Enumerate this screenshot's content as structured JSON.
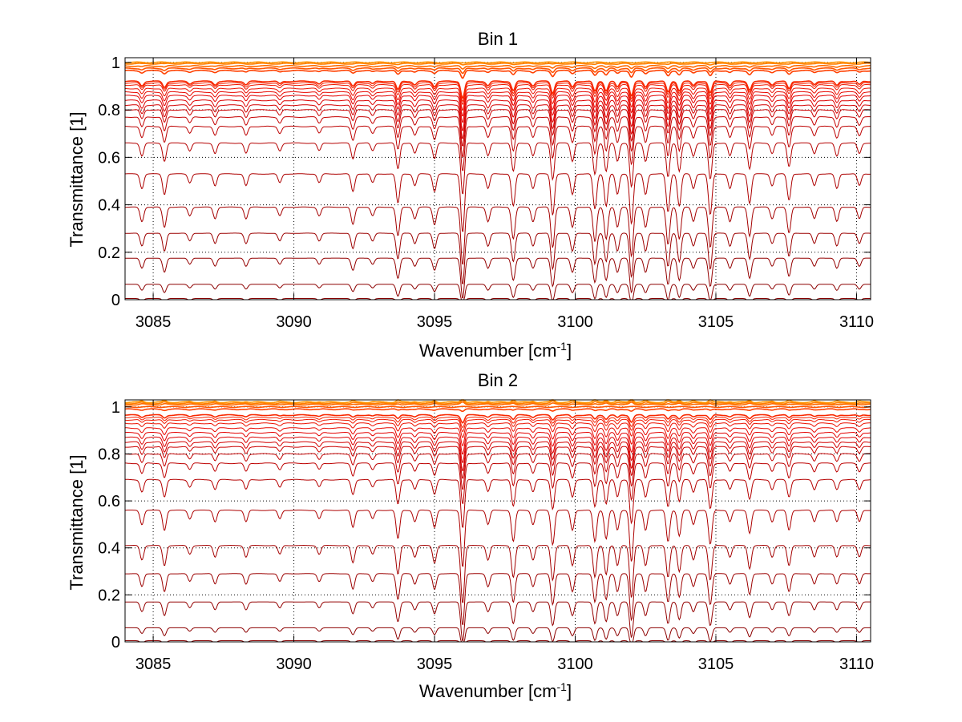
{
  "chart_data": [
    {
      "type": "line",
      "title": "Bin 1",
      "xlabel": "Wavenumber [cm",
      "xlabel_sup": "-1",
      "xlabel_close": "]",
      "ylabel": "Transmittance [1]",
      "xlim": [
        3084,
        3110.5
      ],
      "ylim": [
        0,
        1.02
      ],
      "xticks": [
        3085,
        3090,
        3095,
        3100,
        3105,
        3110
      ],
      "yticks": [
        0,
        0.2,
        0.4,
        0.6,
        0.8,
        1
      ],
      "ytick_labels": [
        "0",
        "0.2",
        "0.4",
        "0.6",
        "0.8",
        "1"
      ],
      "grid": true,
      "absorption_lines": [
        {
          "x": 3084.6,
          "depth": 0.25
        },
        {
          "x": 3085.4,
          "depth": 0.35
        },
        {
          "x": 3086.3,
          "depth": 0.15
        },
        {
          "x": 3087.2,
          "depth": 0.2
        },
        {
          "x": 3088.3,
          "depth": 0.2
        },
        {
          "x": 3089.5,
          "depth": 0.15
        },
        {
          "x": 3090.9,
          "depth": 0.15
        },
        {
          "x": 3092.1,
          "depth": 0.3
        },
        {
          "x": 3092.8,
          "depth": 0.15
        },
        {
          "x": 3093.7,
          "depth": 0.5
        },
        {
          "x": 3094.3,
          "depth": 0.2
        },
        {
          "x": 3095.0,
          "depth": 0.3
        },
        {
          "x": 3096.0,
          "depth": 1.0
        },
        {
          "x": 3096.9,
          "depth": 0.25
        },
        {
          "x": 3097.8,
          "depth": 0.55
        },
        {
          "x": 3098.5,
          "depth": 0.25
        },
        {
          "x": 3099.2,
          "depth": 0.7
        },
        {
          "x": 3099.9,
          "depth": 0.35
        },
        {
          "x": 3100.7,
          "depth": 0.6
        },
        {
          "x": 3101.1,
          "depth": 0.55
        },
        {
          "x": 3101.5,
          "depth": 0.35
        },
        {
          "x": 3102.0,
          "depth": 0.85
        },
        {
          "x": 3102.5,
          "depth": 0.35
        },
        {
          "x": 3103.3,
          "depth": 0.65
        },
        {
          "x": 3103.7,
          "depth": 0.55
        },
        {
          "x": 3104.2,
          "depth": 0.25
        },
        {
          "x": 3104.8,
          "depth": 0.7
        },
        {
          "x": 3105.5,
          "depth": 0.25
        },
        {
          "x": 3106.2,
          "depth": 0.5
        },
        {
          "x": 3107.0,
          "depth": 0.2
        },
        {
          "x": 3107.6,
          "depth": 0.45
        },
        {
          "x": 3108.5,
          "depth": 0.2
        },
        {
          "x": 3109.3,
          "depth": 0.25
        },
        {
          "x": 3110.1,
          "depth": 0.2
        }
      ],
      "baselines": [
        0.0,
        0.005,
        0.065,
        0.175,
        0.28,
        0.39,
        0.53,
        0.66,
        0.73,
        0.77,
        0.8,
        0.82,
        0.84,
        0.86,
        0.875,
        0.89,
        0.905,
        0.913,
        0.92,
        0.965,
        0.975,
        0.985,
        0.995,
        1.0
      ],
      "colors": [
        "#7f0000",
        "#840000",
        "#8c0000",
        "#940000",
        "#9c0000",
        "#a40000",
        "#ad0000",
        "#b50000",
        "#bd0000",
        "#c50000",
        "#cc0000",
        "#d40000",
        "#dc0000",
        "#e40000",
        "#e80800",
        "#ec1000",
        "#f01800",
        "#f42000",
        "#f82800",
        "#ff4000",
        "#ff5500",
        "#ff6a00",
        "#ff7f00",
        "#ff9400"
      ]
    },
    {
      "type": "line",
      "title": "Bin 2",
      "xlabel": "Wavenumber [cm",
      "xlabel_sup": "-1",
      "xlabel_close": "]",
      "ylabel": "Transmittance [1]",
      "xlim": [
        3084,
        3110.5
      ],
      "ylim": [
        0,
        1.03
      ],
      "xticks": [
        3085,
        3090,
        3095,
        3100,
        3105,
        3110
      ],
      "yticks": [
        0,
        0.2,
        0.4,
        0.6,
        0.8,
        1
      ],
      "ytick_labels": [
        "0",
        "0.2",
        "0.4",
        "0.6",
        "0.8",
        "1"
      ],
      "grid": true,
      "absorption_lines": [
        {
          "x": 3084.6,
          "depth": 0.25
        },
        {
          "x": 3085.4,
          "depth": 0.35
        },
        {
          "x": 3086.3,
          "depth": 0.15
        },
        {
          "x": 3087.2,
          "depth": 0.2
        },
        {
          "x": 3088.3,
          "depth": 0.2
        },
        {
          "x": 3089.5,
          "depth": 0.15
        },
        {
          "x": 3090.9,
          "depth": 0.15
        },
        {
          "x": 3092.1,
          "depth": 0.3
        },
        {
          "x": 3092.8,
          "depth": 0.15
        },
        {
          "x": 3093.7,
          "depth": 0.5
        },
        {
          "x": 3094.3,
          "depth": 0.2
        },
        {
          "x": 3095.0,
          "depth": 0.3
        },
        {
          "x": 3096.0,
          "depth": 1.0
        },
        {
          "x": 3096.9,
          "depth": 0.25
        },
        {
          "x": 3097.8,
          "depth": 0.55
        },
        {
          "x": 3098.5,
          "depth": 0.25
        },
        {
          "x": 3099.2,
          "depth": 0.6
        },
        {
          "x": 3099.9,
          "depth": 0.35
        },
        {
          "x": 3100.7,
          "depth": 0.55
        },
        {
          "x": 3101.1,
          "depth": 0.5
        },
        {
          "x": 3101.5,
          "depth": 0.35
        },
        {
          "x": 3102.0,
          "depth": 0.9
        },
        {
          "x": 3102.5,
          "depth": 0.35
        },
        {
          "x": 3103.3,
          "depth": 0.55
        },
        {
          "x": 3103.7,
          "depth": 0.45
        },
        {
          "x": 3104.2,
          "depth": 0.25
        },
        {
          "x": 3104.8,
          "depth": 0.6
        },
        {
          "x": 3105.5,
          "depth": 0.2
        },
        {
          "x": 3106.2,
          "depth": 0.4
        },
        {
          "x": 3107.0,
          "depth": 0.2
        },
        {
          "x": 3107.6,
          "depth": 0.35
        },
        {
          "x": 3108.5,
          "depth": 0.2
        },
        {
          "x": 3109.3,
          "depth": 0.2
        },
        {
          "x": 3110.1,
          "depth": 0.2
        }
      ],
      "baselines": [
        0.0,
        0.005,
        0.06,
        0.17,
        0.29,
        0.41,
        0.56,
        0.69,
        0.76,
        0.8,
        0.83,
        0.85,
        0.87,
        0.89,
        0.91,
        0.93,
        0.945,
        0.955,
        0.965,
        0.99,
        1.0,
        1.01,
        1.015,
        1.02
      ],
      "colors": [
        "#7f0000",
        "#840000",
        "#8c0000",
        "#940000",
        "#9c0000",
        "#a40000",
        "#ad0000",
        "#b50000",
        "#bd0000",
        "#c50000",
        "#cc0000",
        "#d40000",
        "#dc0000",
        "#e40000",
        "#e80800",
        "#ec1000",
        "#f01800",
        "#f42000",
        "#f82800",
        "#ff4000",
        "#ff5500",
        "#ff6a00",
        "#ff7f00",
        "#ff9400"
      ]
    }
  ]
}
